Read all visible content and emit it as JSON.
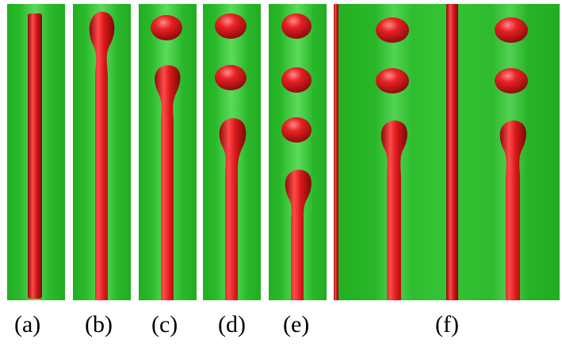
{
  "colors": {
    "background_green": "#2ab82a",
    "green_highlight": "#5fe05f",
    "green_shadow": "#189418",
    "fluid_red": "#d8181a",
    "fluid_highlight": "#ff5a5a",
    "fluid_shadow": "#8e0a0c"
  },
  "panels": [
    {
      "id": "a",
      "label": "(a)",
      "droplets": 0,
      "stage": "straight thread"
    },
    {
      "id": "b",
      "label": "(b)",
      "droplets": 0,
      "stage": "bulb forming at tip"
    },
    {
      "id": "c",
      "label": "(c)",
      "droplets": 1,
      "stage": "first droplet detached"
    },
    {
      "id": "d",
      "label": "(d)",
      "droplets": 2,
      "stage": "second droplet detached"
    },
    {
      "id": "e",
      "label": "(e)",
      "droplets": 3,
      "stage": "third droplet detached"
    },
    {
      "id": "f",
      "label": "(f)",
      "droplets": 2,
      "stage": "two threads side by side"
    }
  ]
}
